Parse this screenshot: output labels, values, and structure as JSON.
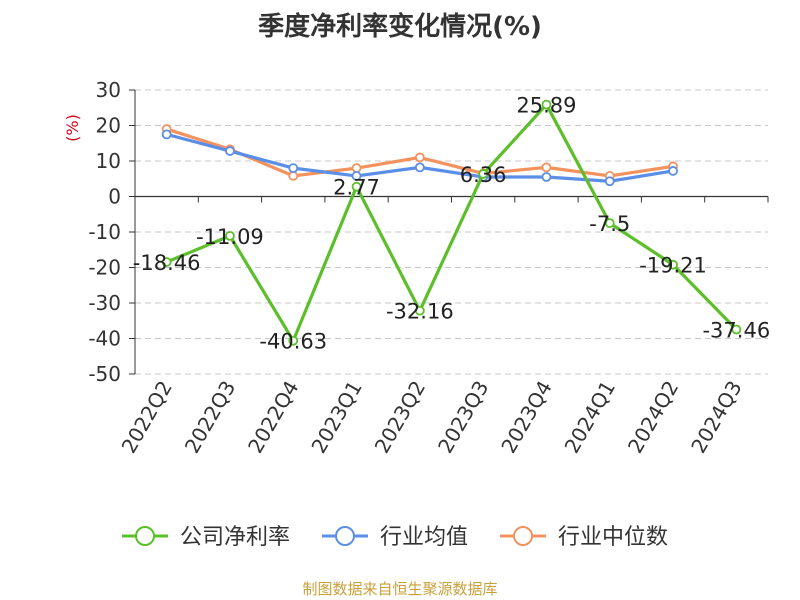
{
  "chart_data": {
    "type": "line",
    "title": "季度净利率变化情况(%)",
    "ylabel": "(%)",
    "categories": [
      "2022Q2",
      "2022Q3",
      "2022Q4",
      "2023Q1",
      "2023Q2",
      "2023Q3",
      "2023Q4",
      "2024Q1",
      "2024Q2",
      "2024Q3"
    ],
    "ylim": [
      -50,
      30
    ],
    "yticks": [
      30,
      20,
      10,
      0,
      -10,
      -20,
      -30,
      -40,
      -50
    ],
    "grid": true,
    "legend_position": "bottom",
    "series": [
      {
        "name": "公司净利率",
        "color": "#5cbf2a",
        "values": [
          -18.46,
          -11.09,
          -40.63,
          2.77,
          -32.16,
          6.36,
          25.89,
          -7.5,
          -19.21,
          -37.46
        ],
        "labels": [
          "-18.46",
          "-11.09",
          "-40.63",
          "2.77",
          "-32.16",
          "6.36",
          "25.89",
          "-7.5",
          "-19.21",
          "-37.46"
        ]
      },
      {
        "name": "行业均值",
        "color": "#5b8ee6",
        "values": [
          17.5,
          12.8,
          8.0,
          5.8,
          8.2,
          5.5,
          5.5,
          4.3,
          7.2,
          null
        ]
      },
      {
        "name": "行业中位数",
        "color": "#f4925e",
        "values": [
          19.0,
          13.3,
          5.8,
          8.0,
          11.0,
          6.5,
          8.2,
          5.8,
          8.5,
          null
        ]
      }
    ]
  },
  "source_note": "制图数据来自恒生聚源数据库"
}
